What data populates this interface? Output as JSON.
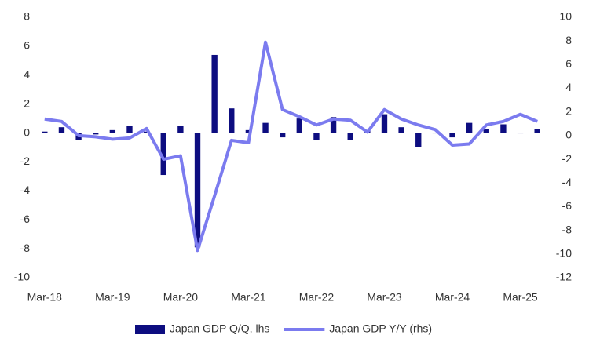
{
  "chart_data": {
    "type": "bar_line",
    "categories": [
      "Mar-18",
      null,
      null,
      null,
      "Mar-19",
      null,
      null,
      null,
      "Mar-20",
      null,
      null,
      null,
      "Mar-21",
      null,
      null,
      null,
      "Mar-22",
      null,
      null,
      null,
      "Mar-23",
      null,
      null,
      null,
      "Mar-24",
      null,
      null,
      null,
      "Mar-25",
      null
    ],
    "series": [
      {
        "name": "Japan GDP Q/Q, lhs",
        "type": "bar",
        "axis": "y",
        "color": "#0d0d80",
        "values": [
          0.1,
          0.4,
          -0.5,
          -0.1,
          0.2,
          0.5,
          0.1,
          -2.9,
          0.5,
          -7.9,
          5.4,
          1.7,
          0.2,
          0.7,
          -0.3,
          1.0,
          -0.5,
          1.1,
          -0.5,
          0.2,
          1.3,
          0.4,
          -1.0,
          0.0,
          -0.3,
          0.7,
          0.3,
          0.6,
          0.0,
          0.3
        ]
      },
      {
        "name": "Japan GDP Y/Y (rhs)",
        "type": "line",
        "axis": "y2",
        "color": "#7b7bef",
        "values": [
          1.4,
          1.2,
          0.0,
          -0.1,
          -0.3,
          -0.2,
          0.6,
          -2.0,
          -1.7,
          -9.7,
          -5.1,
          -0.4,
          -0.6,
          7.9,
          2.2,
          1.6,
          0.9,
          1.4,
          1.3,
          0.3,
          2.2,
          1.4,
          0.9,
          0.5,
          -0.8,
          -0.7,
          0.9,
          1.2,
          1.8,
          1.2
        ]
      }
    ],
    "ylim": [
      -10,
      8
    ],
    "yticks": [
      8,
      6,
      4,
      2,
      0,
      -2,
      -4,
      -6,
      -8,
      -10
    ],
    "y2lim": [
      -12,
      10
    ],
    "y2ticks": [
      10,
      8,
      6,
      4,
      2,
      0,
      -2,
      -4,
      -6,
      -8,
      -10,
      -12
    ],
    "grid": false,
    "legend": "bottom"
  }
}
